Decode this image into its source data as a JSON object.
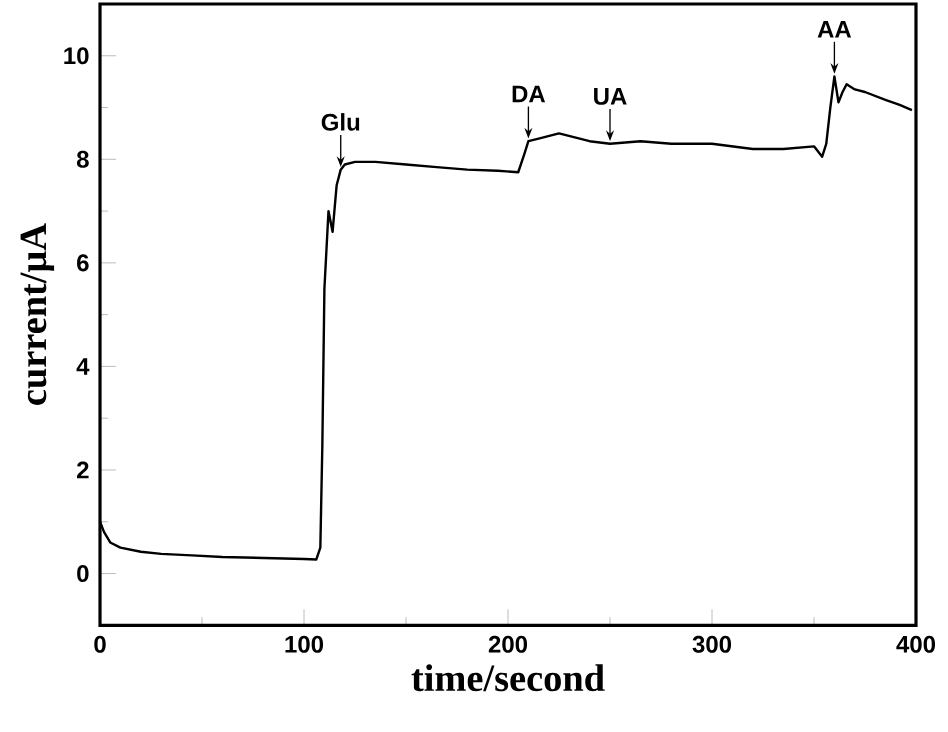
{
  "chart_data": {
    "type": "line",
    "xlabel": "time/second",
    "ylabel": "current/μA",
    "xlim": [
      0,
      400
    ],
    "ylim": [
      -1,
      11
    ],
    "xticks": [
      0,
      100,
      200,
      300,
      400
    ],
    "yticks": [
      0,
      2,
      4,
      6,
      8,
      10
    ],
    "grid": false,
    "legend": false,
    "marker": "none",
    "line_style": "solid",
    "series": [
      {
        "color": "#000000",
        "x": [
          0,
          2,
          5,
          10,
          20,
          30,
          45,
          60,
          80,
          100,
          106,
          108,
          109,
          110,
          112,
          114,
          116,
          118,
          120,
          125,
          135,
          150,
          165,
          180,
          195,
          205,
          208,
          210,
          215,
          225,
          240,
          250,
          265,
          280,
          300,
          320,
          335,
          350,
          354,
          356,
          358,
          360,
          362,
          364,
          366,
          370,
          375,
          385,
          392,
          398
        ],
        "values": [
          1.0,
          0.8,
          0.6,
          0.5,
          0.42,
          0.38,
          0.35,
          0.32,
          0.3,
          0.28,
          0.27,
          0.5,
          2.5,
          5.5,
          7.0,
          6.6,
          7.5,
          7.8,
          7.9,
          7.95,
          7.95,
          7.9,
          7.85,
          7.8,
          7.78,
          7.75,
          8.1,
          8.35,
          8.4,
          8.5,
          8.35,
          8.3,
          8.35,
          8.3,
          8.3,
          8.2,
          8.2,
          8.25,
          8.05,
          8.3,
          9.0,
          9.6,
          9.1,
          9.3,
          9.45,
          9.35,
          9.3,
          9.15,
          9.05,
          8.95
        ]
      }
    ],
    "annotations": [
      {
        "text": "Glu",
        "x": 118,
        "y": 7.8
      },
      {
        "text": "DA",
        "x": 210,
        "y": 8.35
      },
      {
        "text": "UA",
        "x": 250,
        "y": 8.3
      },
      {
        "text": "AA",
        "x": 360,
        "y": 9.6
      }
    ]
  }
}
